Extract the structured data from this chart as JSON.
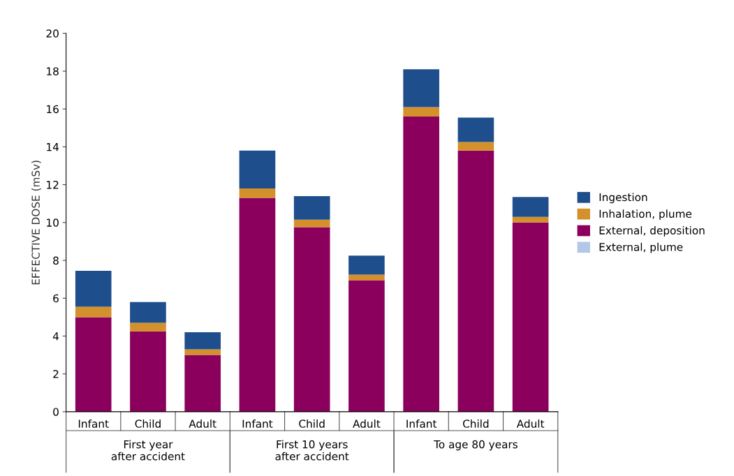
{
  "chart_data": {
    "type": "bar",
    "stacked": true,
    "ylabel": "EFFECTIVE DOSE (mSv)",
    "categories": [
      "Infant",
      "Child",
      "Adult",
      "Infant",
      "Child",
      "Adult",
      "Infant",
      "Child",
      "Adult"
    ],
    "series": [
      {
        "name": "External, plume",
        "color": "#b4c7e7",
        "values": [
          0,
          0,
          0,
          0,
          0,
          0,
          0,
          0,
          0
        ]
      },
      {
        "name": "External, deposition",
        "color": "#8b005d",
        "values": [
          5.0,
          4.25,
          3.0,
          11.3,
          9.75,
          6.95,
          15.6,
          13.8,
          10.0
        ]
      },
      {
        "name": "Inhalation, plume",
        "color": "#d4902a",
        "values": [
          0.55,
          0.45,
          0.3,
          0.5,
          0.4,
          0.3,
          0.5,
          0.45,
          0.3
        ]
      },
      {
        "name": "Ingestion",
        "color": "#1f4e8c",
        "values": [
          1.9,
          1.1,
          0.9,
          2.0,
          1.25,
          1.0,
          2.0,
          1.3,
          1.05
        ]
      }
    ],
    "annotations": [
      "First year\nafter accident",
      "First 10 years\nafter accident",
      "To age 80 years"
    ],
    "ylim": [
      0,
      20
    ],
    "yticks": [
      0,
      2,
      4,
      6,
      8,
      10,
      12,
      14,
      16,
      18,
      20
    ],
    "legend": "right"
  }
}
